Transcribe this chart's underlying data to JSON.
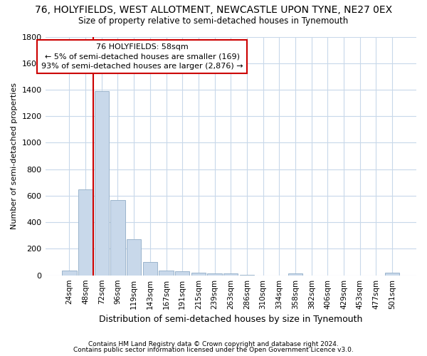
{
  "title1": "76, HOLYFIELDS, WEST ALLOTMENT, NEWCASTLE UPON TYNE, NE27 0EX",
  "title2": "Size of property relative to semi-detached houses in Tynemouth",
  "xlabel": "Distribution of semi-detached houses by size in Tynemouth",
  "ylabel": "Number of semi-detached properties",
  "footer1": "Contains HM Land Registry data © Crown copyright and database right 2024.",
  "footer2": "Contains public sector information licensed under the Open Government Licence v3.0.",
  "annotation_title": "76 HOLYFIELDS: 58sqm",
  "annotation_line1": "← 5% of semi-detached houses are smaller (169)",
  "annotation_line2": "93% of semi-detached houses are larger (2,876) →",
  "bar_color": "#c8d8ea",
  "bar_edge_color": "#9ab4cc",
  "vline_color": "#cc0000",
  "annotation_box_color": "#ffffff",
  "annotation_box_edge": "#cc0000",
  "categories": [
    "24sqm",
    "48sqm",
    "72sqm",
    "96sqm",
    "119sqm",
    "143sqm",
    "167sqm",
    "191sqm",
    "215sqm",
    "239sqm",
    "263sqm",
    "286sqm",
    "310sqm",
    "334sqm",
    "358sqm",
    "382sqm",
    "406sqm",
    "429sqm",
    "453sqm",
    "477sqm",
    "501sqm"
  ],
  "values": [
    35,
    650,
    1390,
    570,
    270,
    100,
    38,
    30,
    20,
    15,
    12,
    5,
    0,
    0,
    15,
    0,
    0,
    0,
    0,
    0,
    20
  ],
  "ylim_max": 1800,
  "yticks": [
    0,
    200,
    400,
    600,
    800,
    1000,
    1200,
    1400,
    1600,
    1800
  ],
  "fig_bg_color": "#ffffff",
  "plot_bg_color": "#ffffff",
  "grid_color": "#c8d8ea"
}
